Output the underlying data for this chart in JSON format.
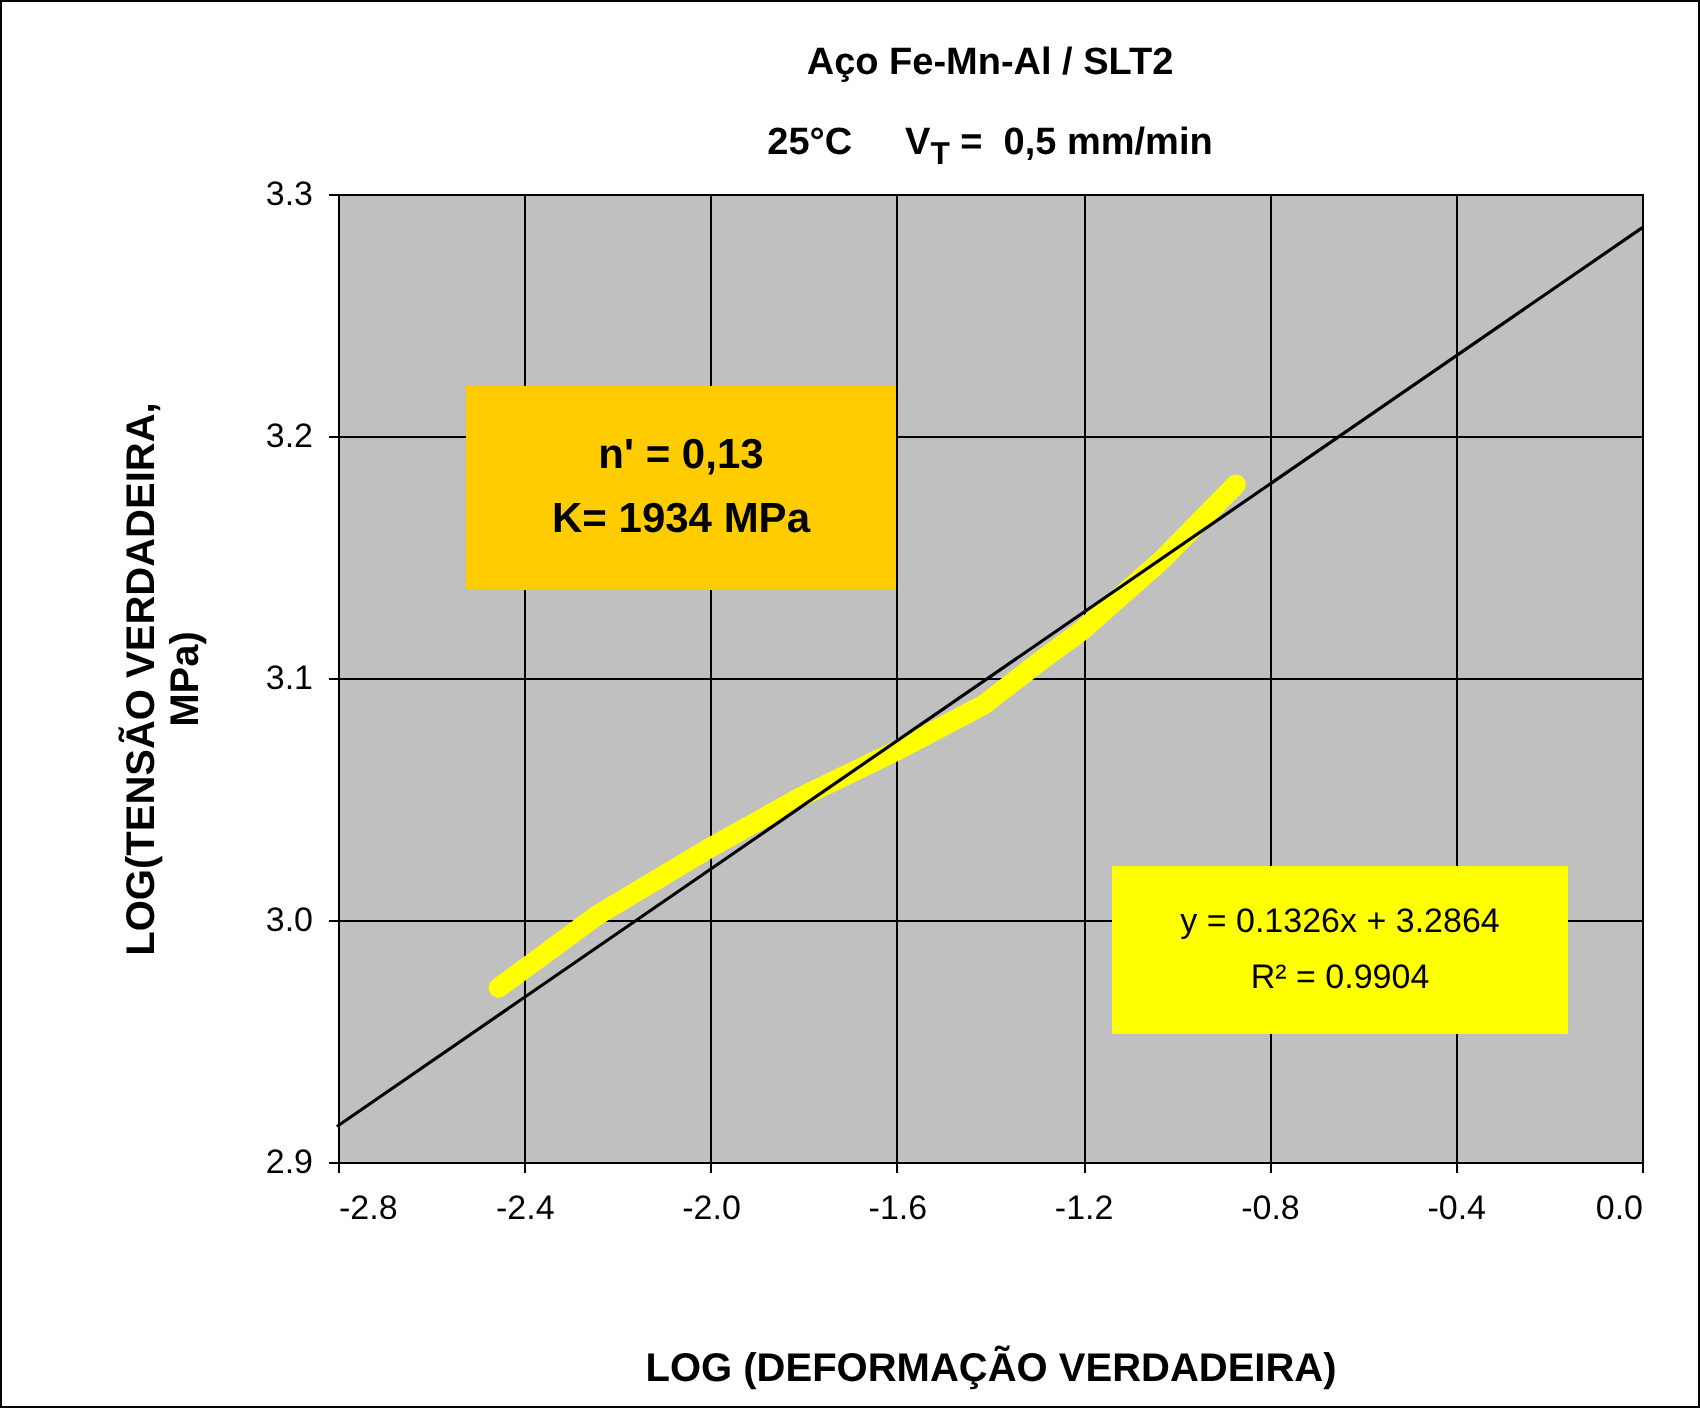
{
  "chart_data": {
    "type": "line",
    "title": "Aço Fe-Mn-Al / SLT2",
    "subtitle": "25°C     V$_{T}$ =  0,5 mm/min",
    "xlabel": "LOG (DEFORMAÇÃO VERDADEIRA)",
    "ylabel": "LOG(TENSÃO VERDADEIRA, MPa)",
    "annotations": [
      "n' = 0,13",
      "K= 1934 MPa",
      "y = 0.1326x + 3.2864",
      "R² = 0.9904"
    ],
    "series": [
      {
        "color": "#ffff00",
        "x": [
          -2.455,
          -2.243,
          -2.0,
          -1.804,
          -1.6,
          -1.413,
          -1.285,
          -1.2,
          -1.03,
          -0.872
        ],
        "values": [
          2.972,
          3.002,
          3.03,
          3.051,
          3.07,
          3.089,
          3.108,
          3.12,
          3.149,
          3.18
        ]
      },
      {
        "type": "line",
        "color": "#000000",
        "x": [
          -2.8,
          0.0
        ],
        "values": [
          2.915,
          3.286
        ]
      }
    ],
    "xlim": [
      -2.8,
      0.0
    ],
    "xticks": [
      -2.8,
      -2.4,
      {
        "value": -2,
        "label": "-2.0"
      },
      -1.6,
      -1.2,
      -0.8,
      -0.4,
      {
        "value": 0,
        "label": "0.0"
      }
    ],
    "ylim": [
      2.9,
      3.3
    ],
    "yticks": [
      2.9,
      {
        "value": 3,
        "label": "3.0"
      },
      3.1,
      3.2,
      3.3
    ],
    "grid": true,
    "marker": "none",
    "line_style": "solid"
  }
}
